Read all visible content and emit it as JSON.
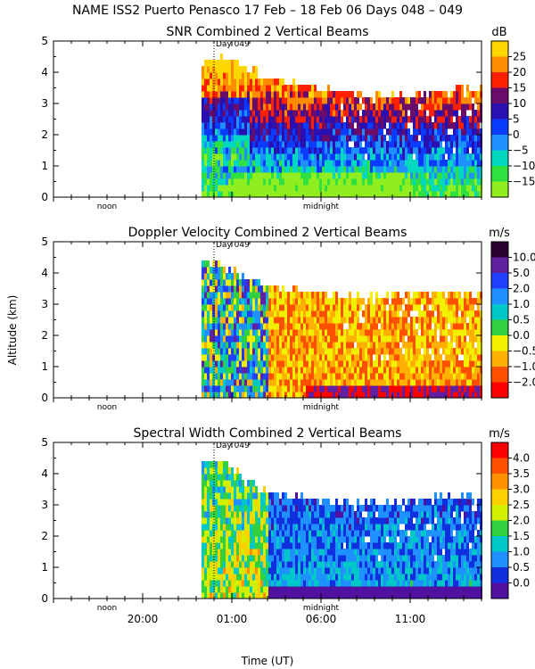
{
  "figure": {
    "title": "NAME ISS2 Puerto Penasco   17 Feb – 18 Feb 06 Days 048 – 049",
    "xlabel": "Time (UT)",
    "ylabel": "Altitude (km)",
    "x_tick_labels": [
      "20:00",
      "01:00",
      "06:00",
      "11:00"
    ],
    "noon_label": "noon",
    "midnight_label": "midnight",
    "day_marker_label": "Day 049"
  },
  "chart_data": [
    {
      "type": "heatmap",
      "title": "SNR Combined 2 Vertical Beams",
      "unit": "dB",
      "xlabel": "",
      "ylabel": "",
      "x_unit": "hours since 17 Feb 15:00 UT",
      "xlim": [
        0,
        24
      ],
      "ylim": [
        0,
        5
      ],
      "y_ticks": [
        0,
        1,
        2,
        3,
        4,
        5
      ],
      "data_start_hour": 8.3,
      "colorbar": {
        "labels": [
          "25",
          "20",
          "15",
          "10",
          "5",
          "0",
          "−5",
          "−10",
          "−15"
        ],
        "colors": [
          "#ffd700",
          "#ff8c00",
          "#ff2000",
          "#6a0d6a",
          "#2a10b0",
          "#0a3cff",
          "#1e90ff",
          "#00d8c0",
          "#30e040",
          "#90ee20"
        ]
      },
      "top_profile_km": [
        [
          8.3,
          4.3
        ],
        [
          9,
          4.4
        ],
        [
          10,
          4.3
        ],
        [
          11,
          4.0
        ],
        [
          12,
          3.7
        ],
        [
          14,
          3.5
        ],
        [
          16,
          3.3
        ],
        [
          18,
          3.2
        ],
        [
          20,
          3.1
        ],
        [
          22,
          3.3
        ],
        [
          24,
          3.4
        ]
      ]
    },
    {
      "type": "heatmap",
      "title": "Doppler Velocity Combined 2 Vertical Beams",
      "unit": "m/s",
      "xlabel": "",
      "ylabel": "Altitude (km)",
      "xlim": [
        0,
        24
      ],
      "ylim": [
        0,
        5
      ],
      "y_ticks": [
        0,
        1,
        2,
        3,
        4,
        5
      ],
      "data_start_hour": 8.3,
      "colorbar": {
        "labels": [
          "10.0",
          "5.0",
          "2.0",
          "1.0",
          "0.5",
          "0.0",
          "−0.5",
          "−1.0",
          "−2.0"
        ],
        "colors": [
          "#2a0030",
          "#6020a0",
          "#2040ff",
          "#1e90ff",
          "#00c8c8",
          "#30d040",
          "#f0f000",
          "#ffb000",
          "#ff5000",
          "#ff0000"
        ]
      },
      "top_profile_km": [
        [
          8.3,
          4.2
        ],
        [
          9,
          4.3
        ],
        [
          10,
          4.0
        ],
        [
          11,
          3.7
        ],
        [
          12,
          3.5
        ],
        [
          14,
          3.3
        ],
        [
          16,
          3.2
        ],
        [
          18,
          3.2
        ],
        [
          20,
          3.2
        ],
        [
          22,
          3.3
        ],
        [
          24,
          3.2
        ]
      ]
    },
    {
      "type": "heatmap",
      "title": "Spectral Width Combined 2 Vertical Beams",
      "unit": "m/s",
      "xlabel": "Time (UT)",
      "ylabel": "",
      "xlim": [
        0,
        24
      ],
      "ylim": [
        0,
        5
      ],
      "y_ticks": [
        0,
        1,
        2,
        3,
        4,
        5
      ],
      "data_start_hour": 8.3,
      "colorbar": {
        "labels": [
          "4.0",
          "3.5",
          "3.0",
          "2.5",
          "2.0",
          "1.5",
          "1.0",
          "0.5",
          "0.0"
        ],
        "colors": [
          "#ff0000",
          "#ff5000",
          "#ff9000",
          "#ffd000",
          "#d0f000",
          "#30d040",
          "#00c8c8",
          "#1e90ff",
          "#1030e0",
          "#5010a0"
        ]
      },
      "top_profile_km": [
        [
          8.3,
          4.2
        ],
        [
          9,
          4.3
        ],
        [
          10,
          4.0
        ],
        [
          11,
          3.6
        ],
        [
          12,
          3.3
        ],
        [
          14,
          3.1
        ],
        [
          16,
          3.0
        ],
        [
          18,
          3.0
        ],
        [
          20,
          3.0
        ],
        [
          22,
          3.2
        ],
        [
          24,
          3.1
        ]
      ]
    }
  ]
}
